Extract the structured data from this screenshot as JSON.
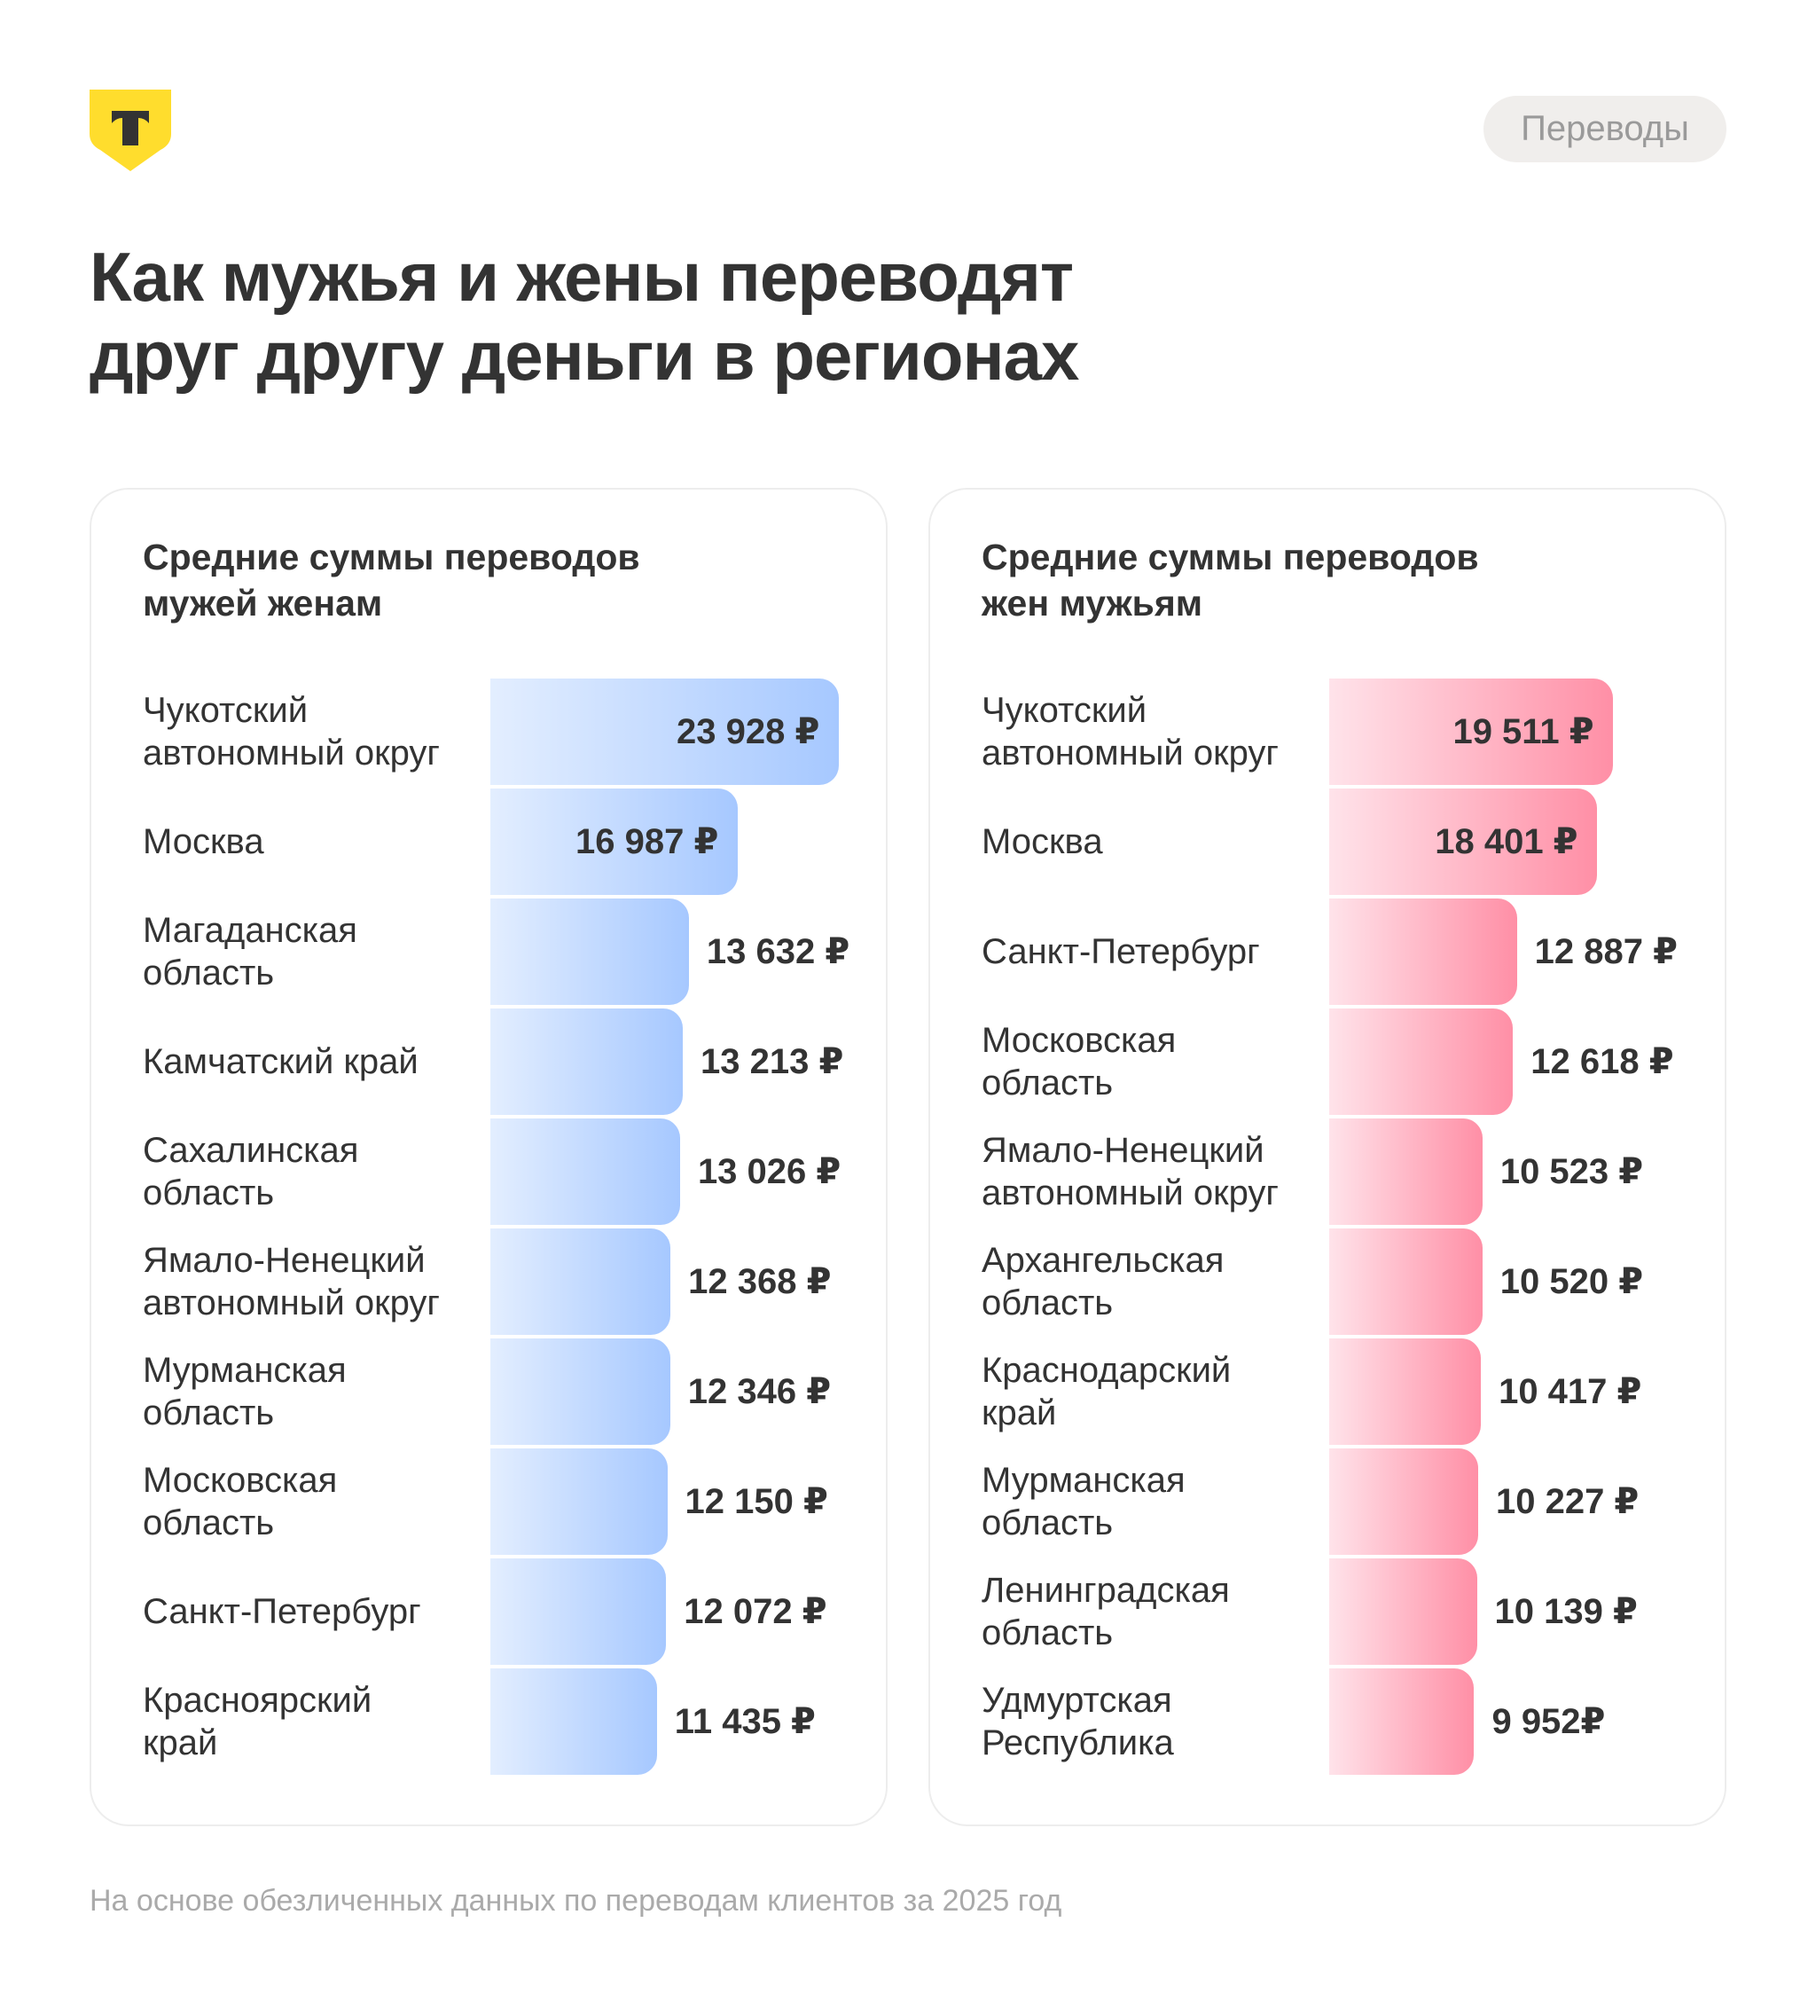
{
  "brand": {
    "logo_letter": "Т",
    "logo_color": "#ffdd2d"
  },
  "tag": "Переводы",
  "title_lines": [
    "Как мужья и жены переводят",
    "друг другу деньги в регионах"
  ],
  "footer": "На основе обезличенных данных по переводам клиентов за 2025 год",
  "chart_data": [
    {
      "type": "bar",
      "orientation": "horizontal",
      "title_lines": [
        "Средние суммы переводов",
        "мужей женам"
      ],
      "color_from": "#e3eeff",
      "color_to": "#a6c8ff",
      "unit": "₽",
      "categories": [
        [
          "Чукотский",
          "автономный округ"
        ],
        [
          "Москва"
        ],
        [
          "Магаданская",
          "область"
        ],
        [
          "Камчатский край"
        ],
        [
          "Сахалинская",
          "область"
        ],
        [
          "Ямало-Ненецкий",
          "автономный округ"
        ],
        [
          "Мурманская",
          "область"
        ],
        [
          "Московская",
          "область"
        ],
        [
          "Санкт-Петербург"
        ],
        [
          "Красноярский",
          "край"
        ]
      ],
      "values": [
        23928,
        16987,
        13632,
        13213,
        13026,
        12368,
        12346,
        12150,
        12072,
        11435
      ],
      "labels": [
        "23 928 ₽",
        "16 987 ₽",
        "13 632 ₽",
        "13 213 ₽",
        "13 026 ₽",
        "12 368 ₽",
        "12 346 ₽",
        "12 150 ₽",
        "12 072 ₽",
        "11 435 ₽"
      ]
    },
    {
      "type": "bar",
      "orientation": "horizontal",
      "title_lines": [
        "Средние суммы переводов",
        "жен мужьям"
      ],
      "color_from": "#ffe3ea",
      "color_to": "#ff8fa6",
      "unit": "₽",
      "categories": [
        [
          "Чукотский",
          "автономный округ"
        ],
        [
          "Москва"
        ],
        [
          "Санкт-Петербург"
        ],
        [
          "Московская",
          "область"
        ],
        [
          "Ямало-Ненецкий",
          "автономный округ"
        ],
        [
          "Архангельская",
          "область"
        ],
        [
          "Краснодарский",
          "край"
        ],
        [
          "Мурманская",
          "область"
        ],
        [
          "Ленинградская",
          "область"
        ],
        [
          "Удмуртская",
          "Республика"
        ]
      ],
      "values": [
        19511,
        18401,
        12887,
        12618,
        10523,
        10520,
        10417,
        10227,
        10139,
        9952
      ],
      "labels": [
        "19 511 ₽",
        "18 401 ₽",
        "12 887 ₽",
        "12 618 ₽",
        "10 523 ₽",
        "10 520 ₽",
        "10 417 ₽",
        "10 227 ₽",
        "10 139 ₽",
        "9 952₽"
      ]
    }
  ]
}
